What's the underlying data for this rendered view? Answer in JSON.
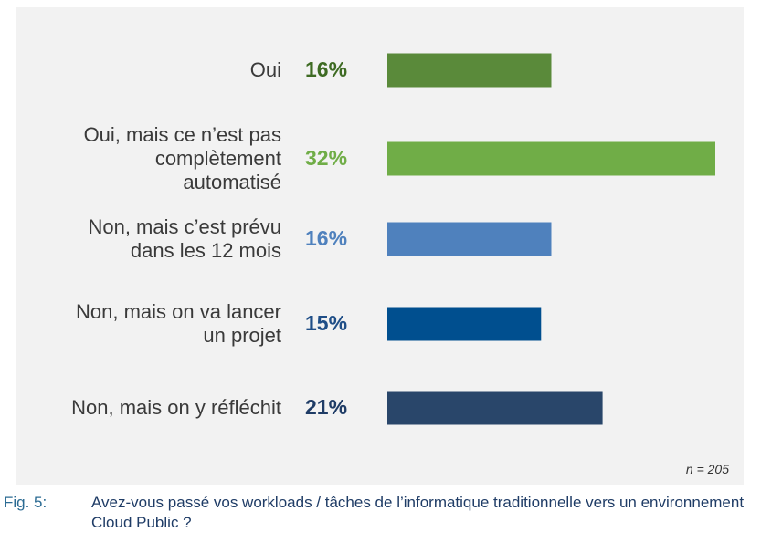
{
  "chart_data": {
    "type": "bar",
    "orientation": "horizontal",
    "categories": [
      "Oui",
      "Oui, mais ce n’est pas\ncomplètement\nautomatisé",
      "Non, mais c’est prévu\ndans les 12 mois",
      "Non, mais on va lancer\nun projet",
      "Non, mais on y réfléchit"
    ],
    "values": [
      16,
      32,
      16,
      15,
      21
    ],
    "value_labels": [
      "16%",
      "32%",
      "16%",
      "15%",
      "21%"
    ],
    "colors": [
      "#5a8a3a",
      "#70ad47",
      "#4f81bd",
      "#004f8f",
      "#29466a"
    ],
    "label_colors": [
      "#3e6b23",
      "#70ad47",
      "#4f81bd",
      "#1f4e87",
      "#1f3c66"
    ],
    "xlim": [
      0,
      32
    ],
    "grid": false,
    "legend": "none",
    "note": "n = 205"
  },
  "caption": {
    "label": "Fig. 5:",
    "text": "Avez-vous passé vos workloads / tâches de l’informatique traditionnelle vers un environnement Cloud Public ?"
  }
}
